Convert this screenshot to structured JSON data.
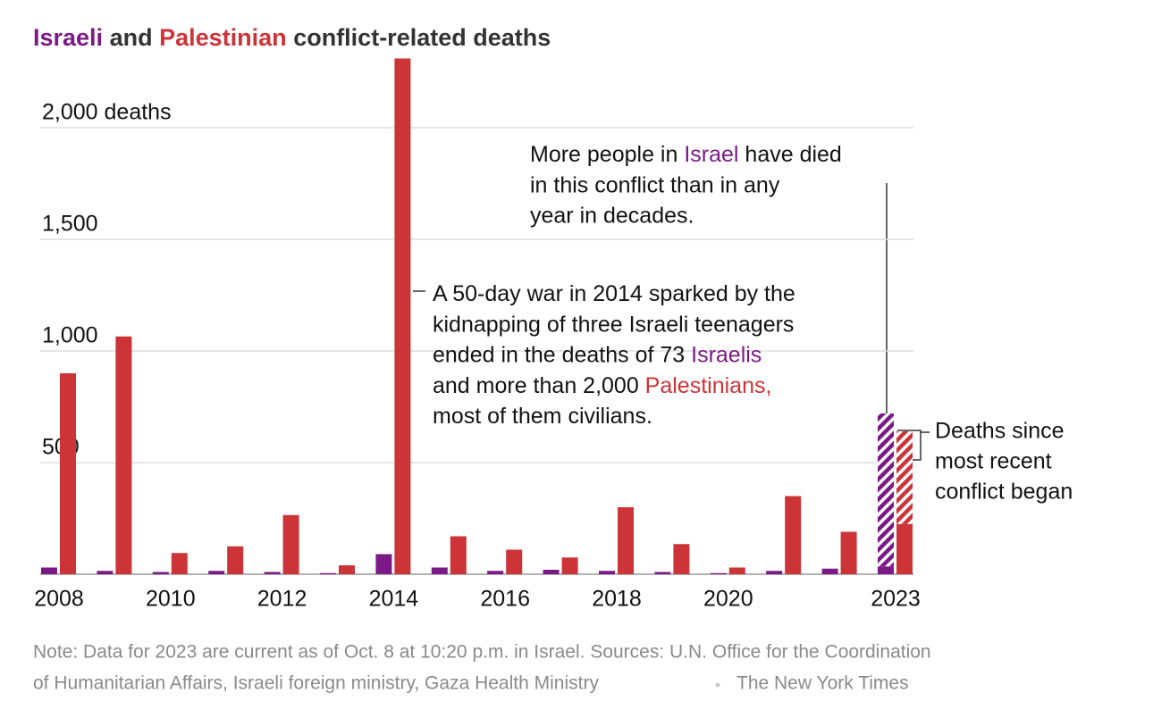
{
  "chart_data": {
    "type": "bar",
    "title_joiner": "and",
    "title_rest": "conflict-related deaths",
    "categories": [
      "2008",
      null,
      "2010",
      null,
      "2012",
      null,
      "2014",
      null,
      "2016",
      null,
      "2018",
      null,
      "2020",
      null,
      null,
      "2023"
    ],
    "series": [
      {
        "name": "Israeli",
        "color": "#7b1a86",
        "values": [
          30,
          15,
          10,
          15,
          10,
          5,
          90,
          30,
          15,
          20,
          15,
          10,
          5,
          15,
          25,
          35
        ]
      },
      {
        "name": "Palestinian",
        "color": "#cc3438",
        "values": [
          900,
          1065,
          95,
          125,
          265,
          40,
          2310,
          170,
          110,
          75,
          300,
          135,
          30,
          350,
          190,
          225
        ]
      }
    ],
    "recent": {
      "lines": [
        "Deaths since",
        "most recent",
        "conflict began"
      ],
      "values": [
        685,
        415
      ]
    },
    "ylim": [
      0,
      2300
    ],
    "yticks": [
      {
        "value": 500,
        "label": "500"
      },
      {
        "value": 1000,
        "label": "1,000"
      },
      {
        "value": 1500,
        "label": "1,500"
      },
      {
        "value": 2000,
        "label": "2,000 deaths"
      }
    ],
    "grid": true,
    "annotations": [
      {
        "lines": [
          [
            {
              "text": "More people in "
            },
            {
              "text": "Israel",
              "series": 0
            },
            {
              "text": " have died"
            }
          ],
          [
            {
              "text": "in this conflict than in any"
            }
          ],
          [
            {
              "text": "year in decades."
            }
          ]
        ]
      },
      {
        "lines": [
          [
            {
              "text": "A 50-day war in 2014 sparked by the"
            }
          ],
          [
            {
              "text": "kidnapping of three Israeli teenagers"
            }
          ],
          [
            {
              "text": "ended in the deaths of 73 "
            },
            {
              "text": "Israelis",
              "series": 0
            }
          ],
          [
            {
              "text": "and more than 2,000 "
            },
            {
              "text": "Palestinians,",
              "series": 1
            }
          ],
          [
            {
              "text": "most of them civilians."
            }
          ]
        ]
      }
    ],
    "note_lines": [
      "Note: Data for 2023 are current as of Oct. 8 at 10:20 p.m. in Israel. Sources: U.N. Office for the Coordination",
      "of Humanitarian Affairs, Israeli foreign ministry, Gaza Health Ministry"
    ],
    "credit": "The New York Times"
  }
}
